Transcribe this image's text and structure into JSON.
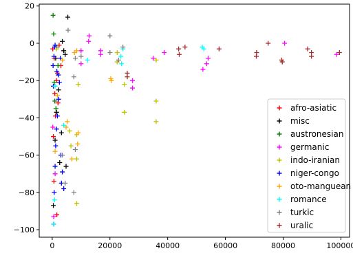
{
  "chart_data": {
    "type": "scatter",
    "title": "",
    "xlabel": "",
    "ylabel": "",
    "xlim": [
      -4500,
      103000
    ],
    "ylim": [
      -104,
      21
    ],
    "xticks": [
      0,
      20000,
      40000,
      60000,
      80000,
      100000
    ],
    "yticks": [
      -100,
      -80,
      -60,
      -40,
      -20,
      0,
      20
    ],
    "xtick_labels": [
      "0",
      "20000",
      "40000",
      "60000",
      "80000",
      "100000"
    ],
    "ytick_labels": [
      "−100",
      "−80",
      "−60",
      "−40",
      "−20",
      "0",
      "20"
    ],
    "grid": false,
    "marker": "plus",
    "legend_position": "bottom-right",
    "series": [
      {
        "name": "afro-asiatic",
        "color": "#ff0000",
        "points": [
          [
            200,
            -3
          ],
          [
            700,
            -8
          ],
          [
            1500,
            -20
          ],
          [
            900,
            -27
          ],
          [
            1800,
            -16
          ],
          [
            400,
            -50
          ],
          [
            1100,
            -39
          ],
          [
            600,
            -74
          ],
          [
            1600,
            -92
          ],
          [
            2400,
            -1
          ],
          [
            3000,
            -12
          ],
          [
            2000,
            -32
          ]
        ]
      },
      {
        "name": "misc",
        "color": "#000000",
        "points": [
          [
            5400,
            14
          ],
          [
            4000,
            -4
          ],
          [
            3500,
            1
          ],
          [
            1000,
            -52
          ],
          [
            400,
            -87
          ],
          [
            1200,
            -8
          ],
          [
            2200,
            -25
          ],
          [
            3200,
            -48
          ],
          [
            4800,
            -66
          ],
          [
            4500,
            -6
          ],
          [
            2600,
            -64
          ],
          [
            1500,
            -37
          ]
        ]
      },
      {
        "name": "austronesian",
        "color": "#008000",
        "points": [
          [
            300,
            15
          ],
          [
            500,
            5
          ],
          [
            1500,
            -2
          ],
          [
            900,
            -31
          ],
          [
            1300,
            -35
          ],
          [
            2000,
            -12
          ],
          [
            700,
            -21
          ]
        ]
      },
      {
        "name": "germanic",
        "color": "#ff00ff",
        "points": [
          [
            12800,
            4
          ],
          [
            12600,
            1
          ],
          [
            10000,
            -4
          ],
          [
            16800,
            -4
          ],
          [
            16800,
            -6
          ],
          [
            10000,
            -11
          ],
          [
            27800,
            -20
          ],
          [
            27800,
            -24
          ],
          [
            35000,
            -8
          ],
          [
            38800,
            -5
          ],
          [
            52200,
            -14
          ],
          [
            54000,
            -8
          ],
          [
            53500,
            -11
          ],
          [
            80500,
            0
          ],
          [
            98500,
            -6
          ],
          [
            500,
            -93
          ],
          [
            1000,
            -70
          ],
          [
            200,
            -45
          ]
        ]
      },
      {
        "name": "indo-iranian",
        "color": "#bfbf00",
        "points": [
          [
            36000,
            -9
          ],
          [
            36000,
            -31
          ],
          [
            36000,
            -42
          ],
          [
            25000,
            -37
          ],
          [
            25000,
            -22
          ],
          [
            22500,
            -10
          ],
          [
            22500,
            -5
          ],
          [
            8500,
            -86
          ],
          [
            8500,
            -49
          ],
          [
            8500,
            -62
          ],
          [
            6500,
            -55
          ],
          [
            6000,
            -47
          ],
          [
            9000,
            -22
          ],
          [
            1500,
            -3
          ]
        ]
      },
      {
        "name": "niger-congo",
        "color": "#0000ff",
        "points": [
          [
            500,
            -97
          ],
          [
            700,
            -80
          ],
          [
            1000,
            -66
          ],
          [
            1200,
            -55
          ],
          [
            1500,
            -46
          ],
          [
            1800,
            -39
          ],
          [
            2200,
            -30
          ],
          [
            2500,
            -21
          ],
          [
            3000,
            -60
          ],
          [
            3500,
            -69
          ],
          [
            4000,
            -78
          ],
          [
            2800,
            -8
          ],
          [
            1000,
            -1
          ],
          [
            800,
            -2
          ],
          [
            600,
            -7
          ],
          [
            1600,
            -15
          ],
          [
            2100,
            -17
          ],
          [
            3200,
            -75
          ],
          [
            300,
            -12
          ],
          [
            400,
            -23
          ]
        ]
      },
      {
        "name": "oto-manguean",
        "color": "#ffa500",
        "points": [
          [
            20300,
            -19
          ],
          [
            20500,
            -20
          ],
          [
            8800,
            -54
          ],
          [
            9000,
            -48
          ],
          [
            6800,
            -62
          ],
          [
            5200,
            -42
          ],
          [
            4800,
            -45
          ],
          [
            7700,
            -5
          ],
          [
            8500,
            -4
          ],
          [
            1800,
            -28
          ],
          [
            1000,
            -58
          ],
          [
            3500,
            -9
          ]
        ]
      },
      {
        "name": "romance",
        "color": "#00ffff",
        "points": [
          [
            24500,
            -3
          ],
          [
            23800,
            -7
          ],
          [
            24000,
            -11
          ],
          [
            12200,
            -9
          ],
          [
            52000,
            -2
          ],
          [
            52500,
            -3
          ],
          [
            500,
            -97
          ],
          [
            800,
            -84
          ],
          [
            4000,
            -44
          ],
          [
            1000,
            -23
          ]
        ]
      },
      {
        "name": "turkic",
        "color": "#808080",
        "points": [
          [
            20000,
            4
          ],
          [
            20000,
            -5
          ],
          [
            5500,
            7
          ],
          [
            7500,
            -18
          ],
          [
            8000,
            -8
          ],
          [
            8000,
            -57
          ],
          [
            7500,
            -80
          ],
          [
            24500,
            -2
          ],
          [
            23000,
            -9
          ],
          [
            4500,
            -75
          ],
          [
            3500,
            -60
          ],
          [
            10000,
            -7
          ]
        ]
      },
      {
        "name": "uralic",
        "color": "#a52a2a",
        "points": [
          [
            26000,
            -16
          ],
          [
            26000,
            -18
          ],
          [
            43800,
            -3
          ],
          [
            44000,
            -6
          ],
          [
            46000,
            -2
          ],
          [
            57800,
            -3
          ],
          [
            70800,
            -5
          ],
          [
            70700,
            -7
          ],
          [
            74800,
            0
          ],
          [
            79500,
            -9
          ],
          [
            79700,
            -10
          ],
          [
            88500,
            -3
          ],
          [
            89800,
            -5
          ],
          [
            89800,
            -7
          ],
          [
            99500,
            -5
          ]
        ]
      }
    ]
  }
}
